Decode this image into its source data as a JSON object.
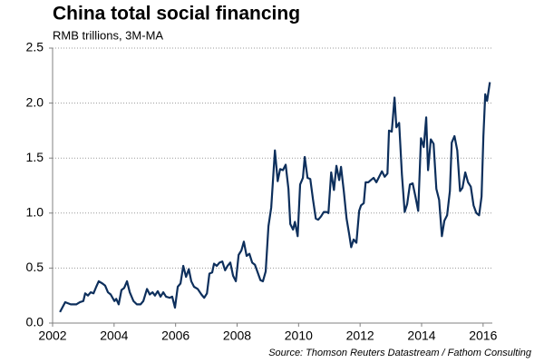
{
  "chart_data": {
    "type": "line",
    "title": "China total social financing",
    "subtitle": "RMB trillions, 3M-MA",
    "source": "Source: Thomson Reuters Datastream / Fathom Consulting",
    "xlim": [
      2002,
      2016.3
    ],
    "xticks": [
      2002,
      2004,
      2006,
      2008,
      2010,
      2012,
      2014,
      2016
    ],
    "ylim": [
      0,
      2.5
    ],
    "yticks": [
      {
        "value": 0,
        "label": "0.0"
      },
      0.5,
      {
        "value": 1,
        "label": "1.0"
      },
      1.5,
      {
        "value": 2,
        "label": "2.0"
      },
      2.5
    ],
    "grid": true,
    "series": [
      {
        "color": "#0d2f5c",
        "x": [
          2002.24,
          2002.41,
          2002.59,
          2002.77,
          2002.89,
          2003.0,
          2003.06,
          2003.15,
          2003.24,
          2003.33,
          2003.42,
          2003.5,
          2003.62,
          2003.71,
          2003.8,
          2003.89,
          2004.01,
          2004.07,
          2004.15,
          2004.24,
          2004.33,
          2004.42,
          2004.51,
          2004.63,
          2004.74,
          2004.86,
          2004.95,
          2005.07,
          2005.16,
          2005.25,
          2005.33,
          2005.42,
          2005.51,
          2005.6,
          2005.69,
          2005.81,
          2005.89,
          2005.98,
          2006.07,
          2006.16,
          2006.25,
          2006.34,
          2006.43,
          2006.51,
          2006.6,
          2006.72,
          2006.84,
          2006.93,
          2007.02,
          2007.1,
          2007.19,
          2007.25,
          2007.34,
          2007.43,
          2007.52,
          2007.61,
          2007.69,
          2007.78,
          2007.87,
          2007.96,
          2008.05,
          2008.14,
          2008.22,
          2008.31,
          2008.4,
          2008.49,
          2008.58,
          2008.67,
          2008.76,
          2008.84,
          2008.93,
          2009.02,
          2009.11,
          2009.23,
          2009.32,
          2009.4,
          2009.49,
          2009.58,
          2009.67,
          2009.73,
          2009.82,
          2009.88,
          2009.97,
          2010.05,
          2010.14,
          2010.2,
          2010.29,
          2010.38,
          2010.47,
          2010.56,
          2010.64,
          2010.73,
          2010.82,
          2010.91,
          2010.97,
          2011.06,
          2011.15,
          2011.23,
          2011.32,
          2011.38,
          2011.47,
          2011.56,
          2011.65,
          2011.71,
          2011.79,
          2011.88,
          2011.97,
          2012.03,
          2012.12,
          2012.18,
          2012.27,
          2012.35,
          2012.44,
          2012.53,
          2012.62,
          2012.71,
          2012.8,
          2012.89,
          2012.94,
          2013.03,
          2013.12,
          2013.18,
          2013.27,
          2013.36,
          2013.45,
          2013.53,
          2013.62,
          2013.71,
          2013.8,
          2013.89,
          2013.98,
          2014.07,
          2014.15,
          2014.21,
          2014.3,
          2014.39,
          2014.48,
          2014.57,
          2014.66,
          2014.74,
          2014.83,
          2014.92,
          2014.98,
          2015.07,
          2015.16,
          2015.25,
          2015.33,
          2015.42,
          2015.51,
          2015.6,
          2015.69,
          2015.78,
          2015.87,
          2015.95,
          2016.01,
          2016.07,
          2016.13,
          2016.22
        ],
        "values": [
          0.1,
          0.19,
          0.17,
          0.17,
          0.19,
          0.2,
          0.27,
          0.25,
          0.28,
          0.27,
          0.33,
          0.38,
          0.36,
          0.34,
          0.28,
          0.26,
          0.2,
          0.22,
          0.17,
          0.3,
          0.32,
          0.38,
          0.28,
          0.2,
          0.17,
          0.17,
          0.2,
          0.31,
          0.26,
          0.28,
          0.25,
          0.29,
          0.24,
          0.28,
          0.24,
          0.23,
          0.24,
          0.14,
          0.33,
          0.36,
          0.52,
          0.42,
          0.49,
          0.38,
          0.33,
          0.31,
          0.26,
          0.23,
          0.27,
          0.45,
          0.46,
          0.54,
          0.52,
          0.55,
          0.56,
          0.48,
          0.52,
          0.55,
          0.43,
          0.38,
          0.62,
          0.66,
          0.74,
          0.61,
          0.63,
          0.55,
          0.53,
          0.46,
          0.39,
          0.38,
          0.47,
          0.88,
          1.05,
          1.57,
          1.29,
          1.4,
          1.39,
          1.44,
          1.22,
          0.9,
          0.85,
          0.92,
          0.79,
          1.26,
          1.32,
          1.51,
          1.32,
          1.31,
          1.12,
          0.95,
          0.94,
          0.97,
          1.01,
          1.01,
          1.0,
          1.37,
          1.21,
          1.43,
          1.3,
          1.42,
          1.2,
          0.95,
          0.8,
          0.69,
          0.76,
          0.73,
          1.02,
          1.07,
          1.09,
          1.28,
          1.28,
          1.3,
          1.32,
          1.28,
          1.33,
          1.38,
          1.33,
          1.36,
          1.75,
          1.74,
          2.05,
          1.78,
          1.82,
          1.35,
          1.01,
          1.08,
          1.26,
          1.27,
          1.15,
          1.02,
          1.68,
          1.6,
          1.87,
          1.39,
          1.67,
          1.63,
          1.22,
          1.12,
          0.79,
          0.93,
          0.98,
          1.2,
          1.64,
          1.7,
          1.57,
          1.2,
          1.23,
          1.37,
          1.28,
          1.24,
          1.07,
          1.0,
          0.98,
          1.15,
          1.7,
          2.08,
          2.02,
          2.19
        ]
      }
    ]
  }
}
